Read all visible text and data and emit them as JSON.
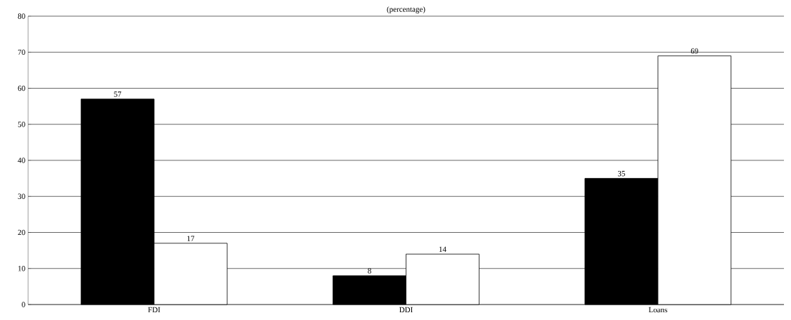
{
  "chart_data": {
    "type": "bar",
    "title": "(percentage)",
    "categories": [
      "FDI",
      "DDI",
      "Loans"
    ],
    "series": [
      {
        "color": "#000000",
        "values": [
          57,
          8,
          35
        ]
      },
      {
        "color": "#ffffff",
        "values": [
          17,
          14,
          69
        ]
      }
    ],
    "ylim": [
      0,
      80
    ],
    "yticks": [
      0,
      10,
      20,
      30,
      40,
      50,
      60,
      70,
      80
    ],
    "grid": "y",
    "data_labels": true
  }
}
